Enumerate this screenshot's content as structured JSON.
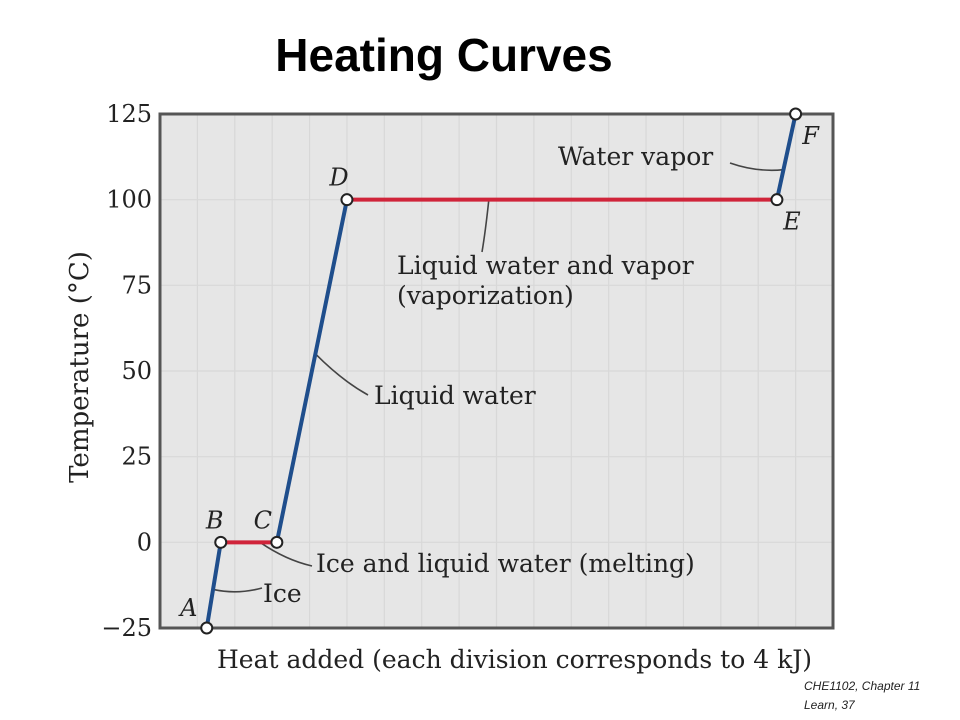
{
  "title": "Heating Curves",
  "footer": {
    "line1": "CHE1102, Chapter 11",
    "line2": "Learn, 37"
  },
  "colors": {
    "heating_segment": "#1f4e8c",
    "phase_change_segment": "#d0243a",
    "frame": "#555555",
    "grid": "#d8d8d8",
    "background": "#e6e6e6"
  },
  "chart_data": {
    "type": "line",
    "title": "",
    "xlabel": "Heat added (each division corresponds to 4 kJ)",
    "ylabel": "Temperature (°C)",
    "ylim": [
      -25,
      125
    ],
    "xlim": [
      0,
      144
    ],
    "yticks": [
      {
        "value": 125,
        "label": "125"
      },
      {
        "value": 100,
        "label": "100"
      },
      {
        "value": 75,
        "label": "75"
      },
      {
        "value": 50,
        "label": "50"
      },
      {
        "value": 25,
        "label": "25"
      },
      {
        "value": 0,
        "label": "0"
      },
      {
        "value": -25,
        "label": "−25"
      }
    ],
    "x_grid_step": 8,
    "grid": true,
    "points": [
      {
        "label": "A",
        "x": 10,
        "y": -25
      },
      {
        "label": "B",
        "x": 13,
        "y": 0
      },
      {
        "label": "C",
        "x": 25,
        "y": 0
      },
      {
        "label": "D",
        "x": 40,
        "y": 100
      },
      {
        "label": "E",
        "x": 132,
        "y": 100
      },
      {
        "label": "F",
        "x": 136,
        "y": 125
      }
    ],
    "segments": [
      {
        "from": "A",
        "to": "B",
        "kind": "heating",
        "label": "Ice"
      },
      {
        "from": "B",
        "to": "C",
        "kind": "phase_change",
        "label": "Ice and liquid water (melting)"
      },
      {
        "from": "C",
        "to": "D",
        "kind": "heating",
        "label": "Liquid water"
      },
      {
        "from": "D",
        "to": "E",
        "kind": "phase_change",
        "label": "Liquid water and vapor\n(vaporization)"
      },
      {
        "from": "E",
        "to": "F",
        "kind": "heating",
        "label": "Water vapor"
      }
    ]
  }
}
